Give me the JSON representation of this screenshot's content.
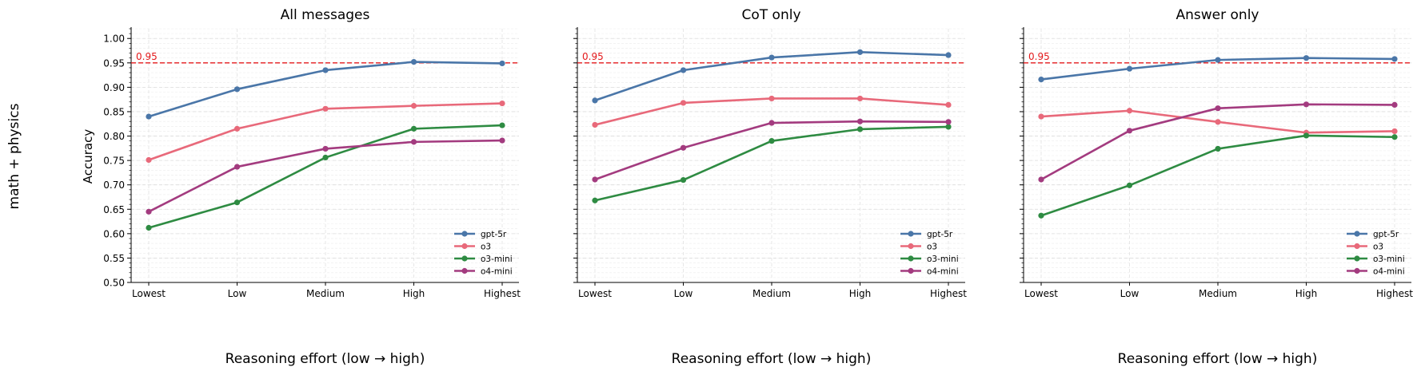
{
  "chart_data": {
    "type": "line",
    "row_label": "math + physics",
    "ylabel": "Accuracy",
    "xlabel": "Reasoning effort (low → high)",
    "categories": [
      "Lowest",
      "Low",
      "Medium",
      "High",
      "Highest"
    ],
    "ylim": [
      0.5,
      1.02
    ],
    "yticks": [
      0.5,
      0.55,
      0.6,
      0.65,
      0.7,
      0.75,
      0.8,
      0.85,
      0.9,
      0.95,
      1.0
    ],
    "grid": true,
    "legend_position": "lower-right",
    "threshold": {
      "value": 0.95,
      "label": "0.95",
      "color": "#e41a1c"
    },
    "colors": {
      "gpt-5r": "#4a76a8",
      "o3": "#e8697a",
      "o3-mini": "#2e8b42",
      "o4-mini": "#a33b7f"
    },
    "panels": [
      {
        "title": "All messages",
        "series": [
          {
            "name": "gpt-5r",
            "values": [
              0.84,
              0.896,
              0.935,
              0.952,
              0.949
            ]
          },
          {
            "name": "o3",
            "values": [
              0.751,
              0.815,
              0.856,
              0.862,
              0.867
            ]
          },
          {
            "name": "o3-mini",
            "values": [
              0.612,
              0.664,
              0.756,
              0.815,
              0.822
            ]
          },
          {
            "name": "o4-mini",
            "values": [
              0.645,
              0.737,
              0.774,
              0.788,
              0.791
            ]
          }
        ]
      },
      {
        "title": "CoT only",
        "series": [
          {
            "name": "gpt-5r",
            "values": [
              0.873,
              0.935,
              0.961,
              0.972,
              0.966
            ]
          },
          {
            "name": "o3",
            "values": [
              0.823,
              0.868,
              0.877,
              0.877,
              0.864
            ]
          },
          {
            "name": "o3-mini",
            "values": [
              0.668,
              0.71,
              0.79,
              0.814,
              0.819
            ]
          },
          {
            "name": "o4-mini",
            "values": [
              0.711,
              0.776,
              0.827,
              0.83,
              0.829
            ]
          }
        ]
      },
      {
        "title": "Answer only",
        "series": [
          {
            "name": "gpt-5r",
            "values": [
              0.916,
              0.938,
              0.956,
              0.96,
              0.958
            ]
          },
          {
            "name": "o3",
            "values": [
              0.84,
              0.852,
              0.829,
              0.807,
              0.81
            ]
          },
          {
            "name": "o3-mini",
            "values": [
              0.637,
              0.699,
              0.774,
              0.801,
              0.798
            ]
          },
          {
            "name": "o4-mini",
            "values": [
              0.711,
              0.811,
              0.857,
              0.865,
              0.864
            ]
          }
        ]
      }
    ]
  }
}
